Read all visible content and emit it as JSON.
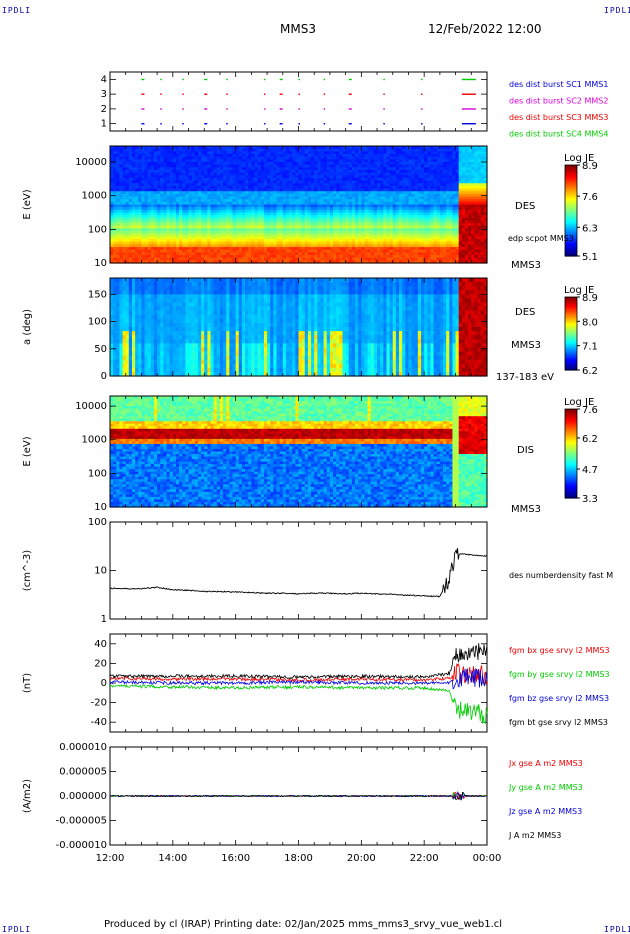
{
  "header": {
    "corner_label": "IPDLI",
    "mission": "MMS3",
    "datetime": "12/Feb/2022 12:00"
  },
  "footer": {
    "text": "Produced by cl (IRAP)   Printing date: 02/Jan/2025   mms_mms3_srvy_vue_web1.cl"
  },
  "colors": {
    "black": "#000000",
    "red": "#ee0000",
    "green": "#00cc00",
    "blue": "#0000dd",
    "magenta": "#dd00dd"
  },
  "chart_data": [
    {
      "type": "scatter",
      "panel": "burst-flags",
      "ylim": [
        0.5,
        4.5
      ],
      "yticks": [
        "1",
        "2",
        "3",
        "4"
      ],
      "legend_placement": "right",
      "series": [
        {
          "name": "des dist burst SC1 MMS1",
          "color": "#0000dd",
          "level": 1
        },
        {
          "name": "des dist burst SC2 MMS2",
          "color": "#dd00dd",
          "level": 2
        },
        {
          "name": "des dist burst SC3 MMS3",
          "color": "#ee0000",
          "level": 3
        },
        {
          "name": "des dist burst SC4 MMS4",
          "color": "#00cc00",
          "level": 4
        }
      ],
      "burst_times_h": [
        13.0,
        13.6,
        14.3,
        15.0,
        15.7,
        16.9,
        17.4,
        18.0,
        18.8,
        19.6,
        20.7,
        21.9,
        23.2
      ]
    },
    {
      "type": "heatmap",
      "panel": "des-energy",
      "ylabel": "E (eV)",
      "scale": "log",
      "ylim": [
        10,
        30000
      ],
      "yticks": [
        "10",
        "100",
        "1000",
        "10000"
      ],
      "colorbar": {
        "title": "Log JE",
        "ticks": [
          "5.1",
          "6.3",
          "7.6",
          "8.9"
        ],
        "min": 5.1,
        "max": 8.9
      },
      "labels": [
        "DES",
        "edp scpot MMS3",
        "MMS3"
      ]
    },
    {
      "type": "heatmap",
      "panel": "des-pitch",
      "ylabel": "a (deg)",
      "ylim": [
        0,
        180
      ],
      "yticks": [
        "0",
        "50",
        "100",
        "150"
      ],
      "colorbar": {
        "title": "Log JE",
        "ticks": [
          "6.2",
          "7.1",
          "8.0",
          "8.9"
        ],
        "min": 6.2,
        "max": 8.9
      },
      "labels": [
        "DES",
        "MMS3",
        "137-183 eV"
      ]
    },
    {
      "type": "heatmap",
      "panel": "dis-energy",
      "ylabel": "E (eV)",
      "scale": "log",
      "ylim": [
        10,
        20000
      ],
      "yticks": [
        "10",
        "100",
        "1000",
        "10000"
      ],
      "colorbar": {
        "title": "Log JE",
        "ticks": [
          "3.3",
          "4.7",
          "6.2",
          "7.6"
        ],
        "min": 3.3,
        "max": 7.6
      },
      "labels": [
        "DIS",
        "MMS3"
      ]
    },
    {
      "type": "line",
      "panel": "density",
      "ylabel": "(cm^-3)",
      "scale": "log",
      "ylim": [
        1,
        100
      ],
      "yticks": [
        "1",
        "10",
        "100"
      ],
      "series": [
        {
          "name": "des numberdensity fast M",
          "color": "#000000",
          "x": [
            12.0,
            12.5,
            13.0,
            13.5,
            14.0,
            14.5,
            15.0,
            15.5,
            16.0,
            16.5,
            17.0,
            17.5,
            18.0,
            18.5,
            19.0,
            19.5,
            20.0,
            20.5,
            21.0,
            21.5,
            22.0,
            22.5,
            22.8,
            23.0,
            23.2,
            23.5,
            24.0
          ],
          "y": [
            4.3,
            4.2,
            4.2,
            4.5,
            4.0,
            3.9,
            3.7,
            3.7,
            3.6,
            3.5,
            3.4,
            3.4,
            3.3,
            3.4,
            3.4,
            3.3,
            3.4,
            3.3,
            3.2,
            3.1,
            3.0,
            2.9,
            6.0,
            20.0,
            22.0,
            21.0,
            20.0
          ]
        }
      ]
    },
    {
      "type": "line",
      "panel": "magnetic-field",
      "ylabel": "(nT)",
      "ylim": [
        -50,
        50
      ],
      "yticks": [
        "-40",
        "-20",
        "0",
        "20",
        "40"
      ],
      "series": [
        {
          "name": "fgm bx gse srvy l2 MMS3",
          "color": "#ee0000",
          "x": [
            12.0,
            14.0,
            16.0,
            18.0,
            20.0,
            22.0,
            22.8,
            23.0,
            23.5,
            24.0
          ],
          "y": [
            5,
            4,
            4,
            3,
            4,
            3,
            5,
            10,
            8,
            8
          ]
        },
        {
          "name": "fgm by gse srvy l2 MMS3",
          "color": "#00cc00",
          "x": [
            12.0,
            14.0,
            16.0,
            18.0,
            20.0,
            22.0,
            22.8,
            23.0,
            23.5,
            24.0
          ],
          "y": [
            -3,
            -4,
            -5,
            -4,
            -5,
            -5,
            -8,
            -28,
            -30,
            -32
          ]
        },
        {
          "name": "fgm bz gse srvy l2 MMS3",
          "color": "#0000dd",
          "x": [
            12.0,
            14.0,
            16.0,
            18.0,
            20.0,
            22.0,
            22.8,
            23.0,
            23.5,
            24.0
          ],
          "y": [
            1,
            0,
            0,
            1,
            0,
            0,
            0,
            5,
            5,
            3
          ]
        },
        {
          "name": "fgm bt gse srvy l2 MMS3",
          "color": "#000000",
          "x": [
            12.0,
            14.0,
            16.0,
            18.0,
            20.0,
            22.0,
            22.8,
            23.0,
            23.5,
            24.0
          ],
          "y": [
            7,
            7,
            7,
            6,
            7,
            6,
            10,
            28,
            30,
            32
          ]
        }
      ]
    },
    {
      "type": "line",
      "panel": "current-density",
      "ylabel": "(A/m2)",
      "ylim": [
        -1e-05,
        1e-05
      ],
      "yticks": [
        "-0.000010",
        "-0.000005",
        "0.000000",
        "0.000005",
        "0.000010"
      ],
      "xlim": [
        12,
        24
      ],
      "xticks": [
        "12:00",
        "14:00",
        "16:00",
        "18:00",
        "20:00",
        "22:00",
        "00:00"
      ],
      "series": [
        {
          "name": "Jx gse A m2 MMS3",
          "color": "#ee0000",
          "x": [
            12.0,
            24.0
          ],
          "y": [
            0,
            0
          ]
        },
        {
          "name": "Jy gse A m2 MMS3",
          "color": "#00cc00",
          "x": [
            12.0,
            24.0
          ],
          "y": [
            0,
            0
          ]
        },
        {
          "name": "Jz gse A m2 MMS3",
          "color": "#0000dd",
          "x": [
            12.0,
            24.0
          ],
          "y": [
            0,
            0
          ]
        },
        {
          "name": "J A m2 MMS3",
          "color": "#000000",
          "x": [
            12.0,
            24.0
          ],
          "y": [
            0,
            0
          ]
        }
      ]
    }
  ]
}
